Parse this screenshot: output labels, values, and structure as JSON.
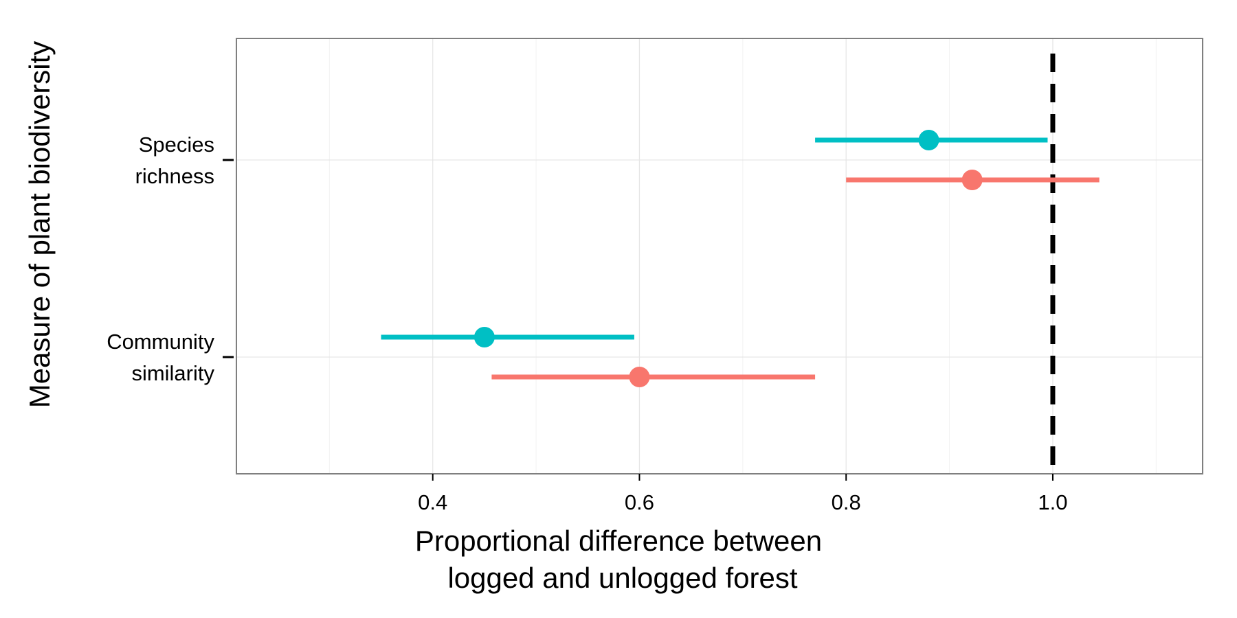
{
  "chart_data": {
    "type": "errorbar",
    "xlabel_line1": "Proportional difference between",
    "xlabel_line2": "logged and unlogged forest",
    "ylabel": "Measure of plant biodiversity",
    "xlim": [
      0.21,
      1.145
    ],
    "x_ticks": [
      0.4,
      0.6,
      0.8,
      1.0
    ],
    "x_tick_labels": [
      "0.4",
      "0.6",
      "0.8",
      "1.0"
    ],
    "x_minor_grid": [
      0.3,
      0.5,
      0.7,
      0.9,
      1.1
    ],
    "categories": [
      {
        "key": "richness",
        "label_line1": "Species",
        "label_line2": "richness"
      },
      {
        "key": "similarity",
        "label_line1": "Community",
        "label_line2": "similarity"
      }
    ],
    "reference_line": {
      "x": 1.0,
      "style": "dashed"
    },
    "grid": true,
    "legend": "none",
    "series": [
      {
        "name": "series-cyan",
        "color": "#00BFC4",
        "offset": "upper",
        "points": [
          {
            "category": "richness",
            "estimate": 0.88,
            "lower": 0.77,
            "upper": 0.995
          },
          {
            "category": "similarity",
            "estimate": 0.45,
            "lower": 0.35,
            "upper": 0.595
          }
        ]
      },
      {
        "name": "series-red",
        "color": "#F8766D",
        "offset": "lower",
        "points": [
          {
            "category": "richness",
            "estimate": 0.922,
            "lower": 0.8,
            "upper": 1.045
          },
          {
            "category": "similarity",
            "estimate": 0.6,
            "lower": 0.457,
            "upper": 0.77
          }
        ]
      }
    ]
  }
}
